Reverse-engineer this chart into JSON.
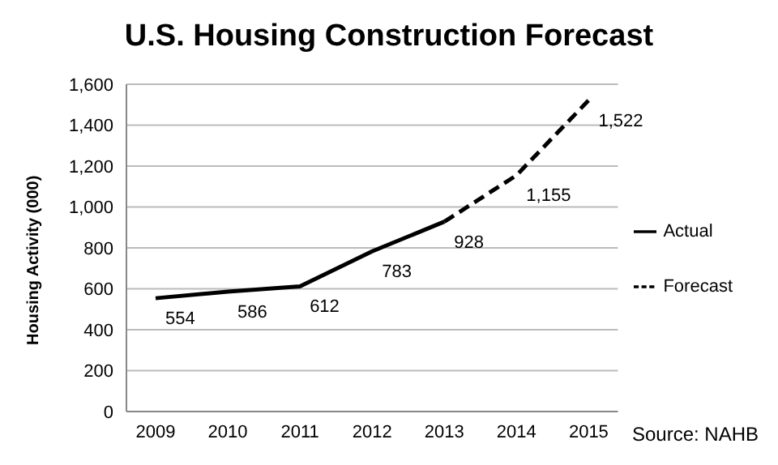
{
  "chart_data": {
    "type": "line",
    "title": "U.S. Housing Construction Forecast",
    "ylabel": "Housing Activity (000)",
    "categories": [
      "2009",
      "2010",
      "2011",
      "2012",
      "2013",
      "2014",
      "2015"
    ],
    "series": [
      {
        "name": "Forecast",
        "color": "#000000",
        "line_style": "dashed",
        "values": [
          null,
          null,
          null,
          null,
          928,
          1155,
          1522
        ],
        "value_labels": [
          null,
          null,
          null,
          null,
          null,
          "1,155",
          "1,522"
        ]
      },
      {
        "name": "Actual",
        "color": "#000000",
        "line_style": "solid",
        "values": [
          554,
          586,
          612,
          783,
          928,
          null,
          null
        ],
        "value_labels": [
          "554",
          "586",
          "612",
          "783",
          "928",
          null,
          null
        ]
      }
    ],
    "ylim": [
      0,
      1600
    ],
    "yticks": [
      0,
      200,
      400,
      600,
      800,
      {
        "value": 1000,
        "label": "1,000"
      },
      {
        "value": 1200,
        "label": "1,200"
      },
      {
        "value": 1400,
        "label": "1,400"
      },
      {
        "value": 1600,
        "label": "1,600"
      }
    ],
    "grid": "y",
    "legend": "right",
    "marker": "none",
    "annotations": [
      "Source: NAHB"
    ]
  }
}
